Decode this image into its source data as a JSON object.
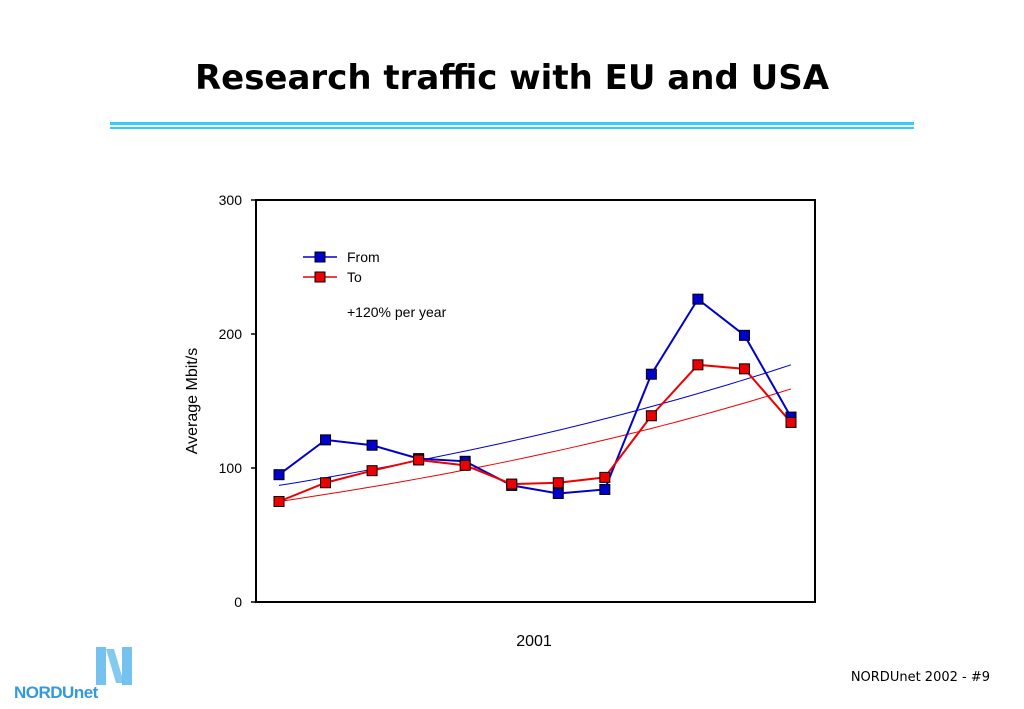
{
  "slide": {
    "title": "Research traffic with EU and USA",
    "footer": "NORDUnet 2002  - #9",
    "logo_text": "NORDUnet"
  },
  "colors": {
    "title_rule": "#33ccff",
    "from": "#0000cc",
    "to": "#ee0000",
    "logo": "#3399dd"
  },
  "chart_data": {
    "type": "line",
    "title": "",
    "xlabel": "2001",
    "ylabel": "Average Mbit/s",
    "ylim": [
      0,
      300
    ],
    "yticks": [
      0,
      100,
      200,
      300
    ],
    "x": [
      1,
      2,
      3,
      4,
      5,
      6,
      7,
      8,
      9,
      10,
      11,
      12
    ],
    "series": [
      {
        "name": "From",
        "color": "#0000cc",
        "marker": "square",
        "values": [
          95,
          121,
          117,
          107,
          105,
          87,
          81,
          84,
          170,
          226,
          199,
          138
        ]
      },
      {
        "name": "To",
        "color": "#ee0000",
        "marker": "square",
        "values": [
          75,
          89,
          98,
          106,
          102,
          88,
          89,
          93,
          139,
          177,
          174,
          134
        ]
      }
    ],
    "trendlines": [
      {
        "series": "From",
        "color": "#0000cc",
        "start": 87,
        "end": 177
      },
      {
        "series": "To",
        "color": "#ee0000",
        "start": 75,
        "end": 159
      }
    ],
    "annotation": "+120% per year",
    "legend_position": "top-left",
    "grid": false
  }
}
